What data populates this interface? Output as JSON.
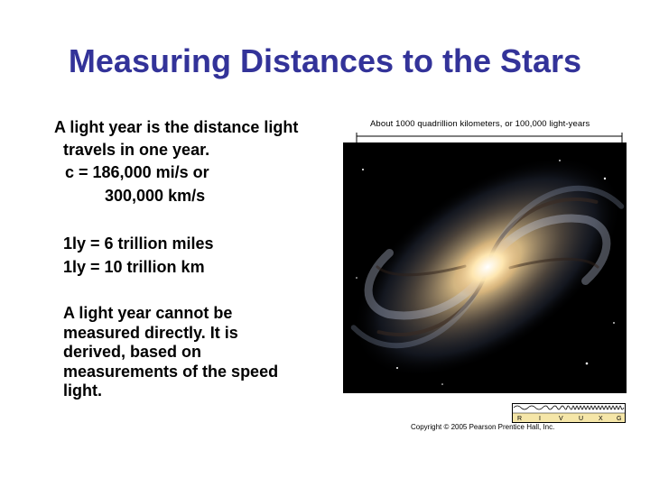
{
  "slide": {
    "title": "Measuring Distances to the Stars",
    "body": {
      "line1_prefix": "A ",
      "line1_term": "light year",
      "line1_rest": " is the distance light",
      "line2": "travels in one year.",
      "line3": "c = 186,000 mi/s or",
      "line4": "300,000 km/s",
      "line5": "1ly = 6 trillion miles",
      "line6": "1ly = 10 trillion km",
      "para_lines": [
        "A light year cannot be",
        "measured directly. It is",
        "derived, based on",
        "measurements of the speed",
        "light."
      ]
    },
    "figure": {
      "caption": "About 1000 quadrillion kilometers, or 100,000 light-years",
      "spectrum_labels": [
        "R",
        "I",
        "V",
        "U",
        "X",
        "G"
      ],
      "copyright": "Copyright © 2005 Pearson Prentice Hall, Inc."
    }
  }
}
